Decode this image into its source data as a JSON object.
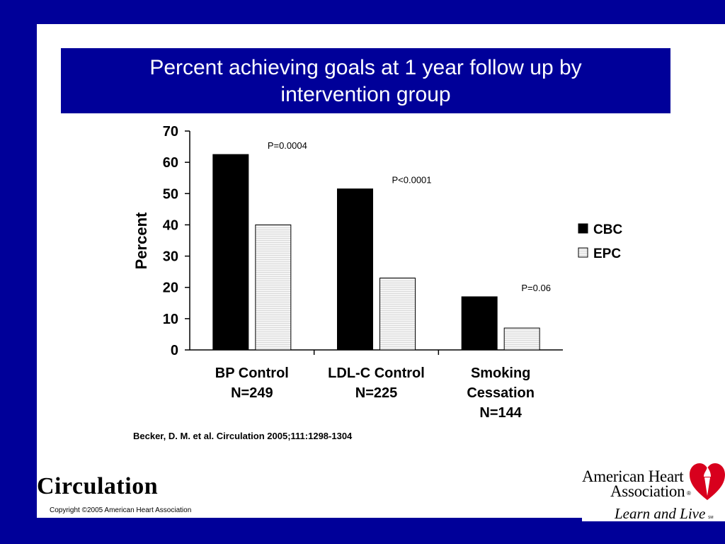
{
  "slide": {
    "title_line1": "Percent achieving goals at 1 year follow up by",
    "title_line2": "intervention group",
    "citation": "Becker, D. M. et al. Circulation 2005;111:1298-1304",
    "journal": "Circulation",
    "copyright": "Copyright ©2005 American Heart Association",
    "logo_line1": "American Heart",
    "logo_line2": "Association",
    "logo_registered": "®",
    "logo_tagline": "Learn and Live",
    "logo_sm": "SM"
  },
  "colors": {
    "background": "#000099",
    "title_band": "#000099",
    "cbc": "#000000",
    "epc": "#f2f2f2",
    "logo_red": "#d8001d"
  },
  "chart_data": {
    "type": "bar",
    "title": "",
    "ylabel": "Percent",
    "xlabel": "",
    "ylim": [
      0,
      70
    ],
    "yticks": [
      "0",
      "10",
      "20",
      "30",
      "40",
      "50",
      "60",
      "70"
    ],
    "categories": [
      [
        "BP Control",
        "N=249"
      ],
      [
        "LDL-C Control",
        "N=225"
      ],
      [
        "Smoking",
        "Cessation",
        "N=144"
      ]
    ],
    "series": [
      {
        "name": "CBC",
        "values": [
          62.5,
          51.5,
          17
        ]
      },
      {
        "name": "EPC",
        "values": [
          40,
          23,
          7
        ]
      }
    ],
    "annotations": [
      "P=0.0004",
      "P<0.0001",
      "P=0.06"
    ],
    "legend_position": "right",
    "grid": false
  }
}
